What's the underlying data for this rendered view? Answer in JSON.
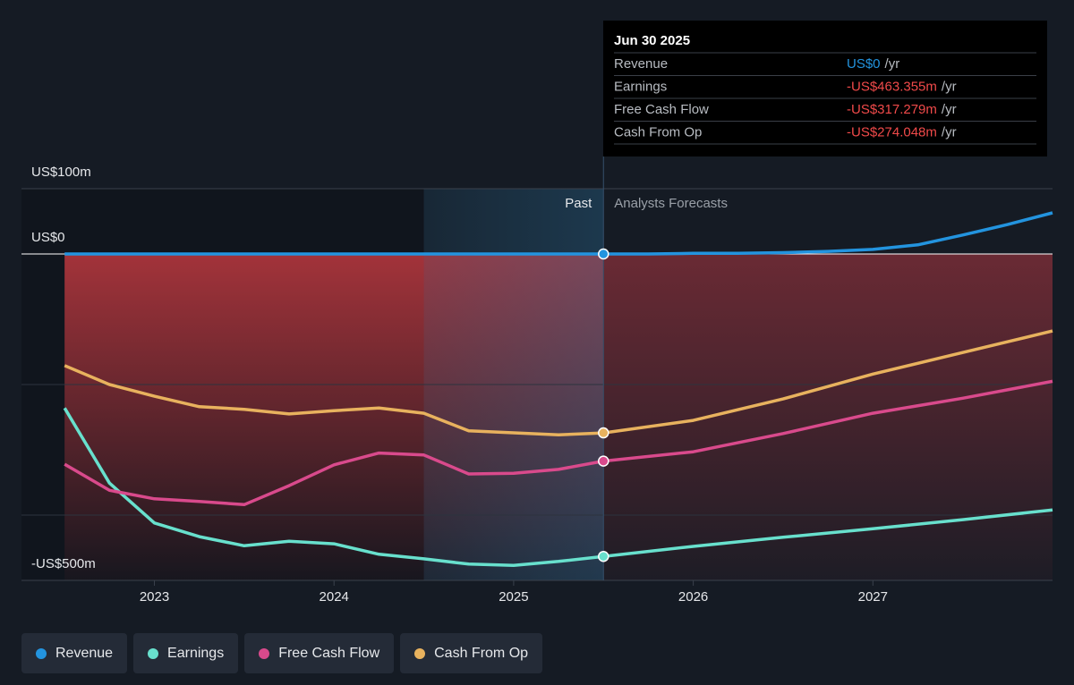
{
  "chart_data": {
    "type": "line",
    "xlim": [
      2022.26,
      2028.0
    ],
    "xticks": [
      2023,
      2024,
      2025,
      2026,
      2027
    ],
    "ylim": [
      -500,
      100
    ],
    "yticks": [
      {
        "value": 100,
        "label": "US$100m"
      },
      {
        "value": 0,
        "label": "US$0"
      },
      {
        "value": -500,
        "label": "-US$500m"
      }
    ],
    "minor_gridlines": [
      -400,
      -200
    ],
    "highlight_start": 2024.5,
    "forecast_start": 2025.5,
    "past_label": "Past",
    "forecast_label": "Analysts Forecasts",
    "series": [
      {
        "name": "Revenue",
        "color": "#2394df",
        "x": [
          2022.5,
          2023,
          2023.5,
          2024,
          2024.5,
          2025,
          2025.5,
          2025.75,
          2026,
          2026.25,
          2026.5,
          2026.75,
          2027,
          2027.25,
          2027.5,
          2027.75,
          2028
        ],
        "values": [
          0,
          0,
          0,
          0,
          0,
          0,
          0,
          0,
          1,
          1,
          2,
          4,
          7,
          14,
          29,
          45,
          63
        ]
      },
      {
        "name": "Earnings",
        "color": "#68e0cd",
        "x": [
          2022.5,
          2022.75,
          2023,
          2023.25,
          2023.5,
          2023.75,
          2024,
          2024.25,
          2024.5,
          2024.75,
          2025,
          2025.25,
          2025.5,
          2026,
          2026.5,
          2027,
          2027.5,
          2028
        ],
        "values": [
          -236,
          -351,
          -412,
          -433,
          -447,
          -440,
          -444,
          -460,
          -467,
          -475,
          -477,
          -471,
          -463.355,
          -448,
          -434,
          -421,
          -407,
          -392
        ]
      },
      {
        "name": "Free Cash Flow",
        "color": "#d94a8c",
        "x": [
          2022.5,
          2022.75,
          2023,
          2023.25,
          2023.5,
          2023.75,
          2024,
          2024.25,
          2024.5,
          2024.75,
          2025,
          2025.25,
          2025.5,
          2026,
          2026.5,
          2027,
          2027.5,
          2028
        ],
        "values": [
          -322,
          -362,
          -375,
          -379,
          -384,
          -355,
          -323,
          -305,
          -308,
          -337,
          -336,
          -330,
          -317.279,
          -303,
          -275,
          -244,
          -221,
          -195
        ]
      },
      {
        "name": "Cash From Op",
        "color": "#e8b25e",
        "x": [
          2022.5,
          2022.75,
          2023,
          2023.25,
          2023.5,
          2023.75,
          2024,
          2024.25,
          2024.5,
          2024.75,
          2025,
          2025.25,
          2025.5,
          2026,
          2026.5,
          2027,
          2027.5,
          2028
        ],
        "values": [
          -171,
          -200,
          -218,
          -234,
          -238,
          -245,
          -240,
          -236,
          -244,
          -271,
          -274,
          -277,
          -274.048,
          -255,
          -222,
          -184,
          -151,
          -118
        ]
      }
    ],
    "tooltip": {
      "title": "Jun 30 2025",
      "rows": [
        {
          "label": "Revenue",
          "value": "US$0",
          "unit": "/yr"
        },
        {
          "label": "Earnings",
          "value": "-US$463.355m",
          "unit": "/yr"
        },
        {
          "label": "Free Cash Flow",
          "value": "-US$317.279m",
          "unit": "/yr"
        },
        {
          "label": "Cash From Op",
          "value": "-US$274.048m",
          "unit": "/yr"
        }
      ]
    }
  }
}
